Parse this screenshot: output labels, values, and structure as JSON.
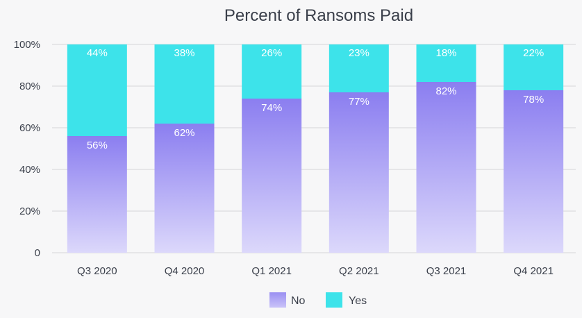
{
  "chart_data": {
    "type": "bar",
    "stacked": true,
    "title": "Percent of Ransoms Paid",
    "xlabel": "",
    "ylabel": "",
    "categories": [
      "Q3 2020",
      "Q4 2020",
      "Q1 2021",
      "Q2 2021",
      "Q3 2021",
      "Q4 2021"
    ],
    "series": [
      {
        "name": "No",
        "values": [
          56,
          62,
          74,
          77,
          82,
          78
        ],
        "labels": [
          "56%",
          "62%",
          "74%",
          "77%",
          "82%",
          "78%"
        ],
        "color": "#8b7ef0"
      },
      {
        "name": "Yes",
        "values": [
          44,
          38,
          26,
          23,
          18,
          22
        ],
        "labels": [
          "44%",
          "38%",
          "26%",
          "23%",
          "18%",
          "22%"
        ],
        "color": "#3de3ea"
      }
    ],
    "ylim": [
      0,
      100
    ],
    "yticks": [
      0,
      20,
      40,
      60,
      80,
      100
    ],
    "ytick_labels": [
      "0",
      "20%",
      "40%",
      "60%",
      "80%",
      "100%"
    ],
    "grid": true,
    "legend_position": "bottom"
  }
}
